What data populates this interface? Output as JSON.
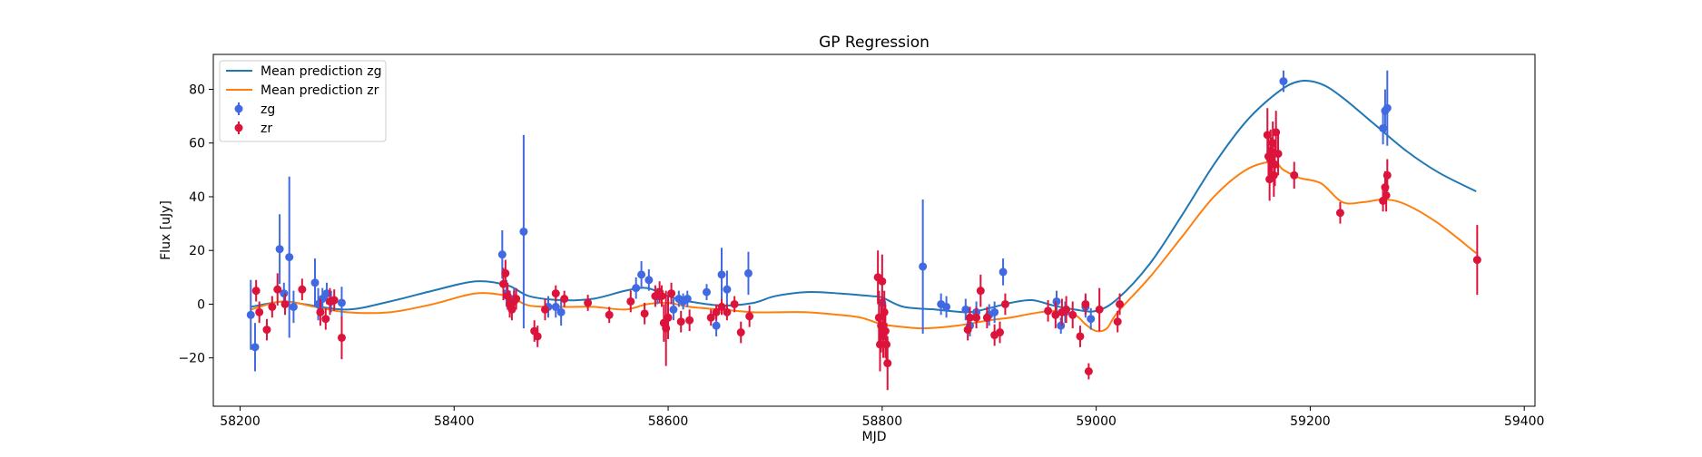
{
  "chart_data": {
    "type": "scatter",
    "title": "GP Regression",
    "xlabel": "MJD",
    "ylabel": "Flux [uJy]",
    "xlim": [
      58175,
      59410
    ],
    "ylim": [
      -38,
      93
    ],
    "x_ticks": [
      58200,
      58400,
      58600,
      58800,
      59000,
      59200,
      59400
    ],
    "y_ticks": [
      -20,
      0,
      20,
      40,
      60,
      80
    ],
    "grid": false,
    "legend_position": "top-left",
    "legend": [
      "Mean prediction zg",
      "Mean prediction zr",
      "zg",
      "zr"
    ],
    "colors": {
      "zg_line": "#1f77b4",
      "zr_line": "#ff7f0e",
      "zg_points": "#4169e1",
      "zr_points": "#dc143c"
    },
    "series": [
      {
        "name": "Mean prediction zg",
        "kind": "line",
        "x": [
          58210,
          58240,
          58260,
          58300,
          58340,
          58380,
          58420,
          58450,
          58470,
          58500,
          58530,
          58560,
          58580,
          58600,
          58620,
          58650,
          58680,
          58700,
          58730,
          58760,
          58790,
          58800,
          58820,
          58850,
          58880,
          58900,
          58920,
          58940,
          58960,
          58980,
          59000,
          59020,
          59050,
          59080,
          59110,
          59140,
          59170,
          59190,
          59210,
          59230,
          59260,
          59290,
          59320,
          59355
        ],
        "y": [
          -1,
          1,
          0,
          -2,
          1,
          5,
          8.5,
          7,
          3,
          1.5,
          2,
          5,
          6,
          3,
          1,
          -0.5,
          0.5,
          3,
          4.5,
          4,
          3,
          2.5,
          -1,
          -2,
          -3,
          -1.5,
          0.5,
          1.5,
          -0.5,
          -2,
          -2.5,
          2,
          15,
          33,
          52,
          68,
          79,
          83,
          82,
          77,
          67,
          57,
          49,
          42
        ]
      },
      {
        "name": "Mean prediction zr",
        "kind": "line",
        "x": [
          58210,
          58240,
          58270,
          58300,
          58340,
          58380,
          58420,
          58450,
          58470,
          58500,
          58530,
          58560,
          58580,
          58600,
          58620,
          58650,
          58680,
          58700,
          58730,
          58760,
          58780,
          58800,
          58820,
          58840,
          58870,
          58900,
          58920,
          58940,
          58960,
          58980,
          58990,
          59000,
          59010,
          59020,
          59050,
          59080,
          59110,
          59140,
          59165,
          59175,
          59190,
          59210,
          59230,
          59250,
          59270,
          59290,
          59320,
          59355
        ],
        "y": [
          -2,
          1,
          -1,
          -3,
          -3,
          0,
          4,
          3,
          -0.5,
          -1,
          -1,
          -2,
          0,
          0.5,
          -1,
          -2,
          -3,
          -3,
          -3,
          -4,
          -5,
          -7.5,
          -8.5,
          -9,
          -8,
          -6,
          -5,
          -3.5,
          -2.5,
          -4,
          -7.5,
          -10,
          -9,
          -3,
          10,
          25,
          40,
          50,
          53,
          50,
          47,
          45,
          38,
          38,
          39,
          37,
          30,
          19
        ]
      },
      {
        "name": "zg",
        "kind": "errorbar",
        "points": [
          {
            "x": 58210,
            "y": -4,
            "e": 13
          },
          {
            "x": 58214,
            "y": -16,
            "e": 9
          },
          {
            "x": 58237,
            "y": 20.5,
            "e": 13
          },
          {
            "x": 58241,
            "y": 4,
            "e": 4
          },
          {
            "x": 58246,
            "y": 17.5,
            "e": 30
          },
          {
            "x": 58250,
            "y": -1,
            "e": 6
          },
          {
            "x": 58270,
            "y": 8,
            "e": 9
          },
          {
            "x": 58273,
            "y": 0,
            "e": 6
          },
          {
            "x": 58277,
            "y": 2,
            "e": 4
          },
          {
            "x": 58281,
            "y": 4,
            "e": 4
          },
          {
            "x": 58285,
            "y": 1,
            "e": 4
          },
          {
            "x": 58295,
            "y": 0.5,
            "e": 6
          },
          {
            "x": 58445,
            "y": 18.5,
            "e": 9
          },
          {
            "x": 58449,
            "y": 4,
            "e": 5
          },
          {
            "x": 58452,
            "y": 1,
            "e": 4
          },
          {
            "x": 58456,
            "y": 2,
            "e": 4
          },
          {
            "x": 58465,
            "y": 27,
            "e": 36
          },
          {
            "x": 58488,
            "y": -1,
            "e": 4
          },
          {
            "x": 58495,
            "y": -1,
            "e": 4
          },
          {
            "x": 58500,
            "y": -3,
            "e": 5
          },
          {
            "x": 58570,
            "y": 6,
            "e": 4
          },
          {
            "x": 58575,
            "y": 11,
            "e": 5
          },
          {
            "x": 58582,
            "y": 9,
            "e": 4
          },
          {
            "x": 58590,
            "y": 3,
            "e": 3
          },
          {
            "x": 58605,
            "y": -2,
            "e": 4
          },
          {
            "x": 58610,
            "y": 2,
            "e": 3
          },
          {
            "x": 58614,
            "y": 1,
            "e": 3
          },
          {
            "x": 58618,
            "y": 2,
            "e": 3
          },
          {
            "x": 58636,
            "y": 4.5,
            "e": 3
          },
          {
            "x": 58645,
            "y": -8,
            "e": 4
          },
          {
            "x": 58650,
            "y": 11,
            "e": 10
          },
          {
            "x": 58655,
            "y": 5.5,
            "e": 7
          },
          {
            "x": 58675,
            "y": 11.5,
            "e": 8
          },
          {
            "x": 58800,
            "y": 0.5,
            "e": 5
          },
          {
            "x": 58838,
            "y": 14,
            "e": 25
          },
          {
            "x": 58855,
            "y": 0,
            "e": 4
          },
          {
            "x": 58860,
            "y": -1,
            "e": 4
          },
          {
            "x": 58878,
            "y": -2,
            "e": 4
          },
          {
            "x": 58882,
            "y": -8,
            "e": 4
          },
          {
            "x": 58888,
            "y": -3,
            "e": 4
          },
          {
            "x": 58900,
            "y": -4,
            "e": 4
          },
          {
            "x": 58905,
            "y": -3,
            "e": 4
          },
          {
            "x": 58913,
            "y": 12,
            "e": 5
          },
          {
            "x": 58963,
            "y": 1,
            "e": 4
          },
          {
            "x": 58967,
            "y": -8,
            "e": 3
          },
          {
            "x": 58971,
            "y": -3,
            "e": 4
          },
          {
            "x": 58990,
            "y": -1,
            "e": 4
          },
          {
            "x": 58995,
            "y": -5.5,
            "e": 4
          },
          {
            "x": 59175,
            "y": 83,
            "e": 4
          },
          {
            "x": 59268,
            "y": 65.5,
            "e": 6
          },
          {
            "x": 59270,
            "y": 72,
            "e": 8
          },
          {
            "x": 59272,
            "y": 73,
            "e": 14
          }
        ]
      },
      {
        "name": "zr",
        "kind": "errorbar",
        "points": [
          {
            "x": 58215,
            "y": 5,
            "e": 4
          },
          {
            "x": 58218,
            "y": -3,
            "e": 4
          },
          {
            "x": 58225,
            "y": -9.5,
            "e": 4
          },
          {
            "x": 58230,
            "y": -1,
            "e": 4
          },
          {
            "x": 58235,
            "y": 5.5,
            "e": 6
          },
          {
            "x": 58242,
            "y": 0,
            "e": 4
          },
          {
            "x": 58258,
            "y": 5.5,
            "e": 4
          },
          {
            "x": 58275,
            "y": -3,
            "e": 5
          },
          {
            "x": 58280,
            "y": -5.5,
            "e": 4
          },
          {
            "x": 58284,
            "y": 1,
            "e": 5
          },
          {
            "x": 58288,
            "y": 1.5,
            "e": 4
          },
          {
            "x": 58295,
            "y": -12.5,
            "e": 8
          },
          {
            "x": 58446,
            "y": 7.5,
            "e": 6
          },
          {
            "x": 58448,
            "y": 11.5,
            "e": 5
          },
          {
            "x": 58450,
            "y": 3,
            "e": 5
          },
          {
            "x": 58452,
            "y": 0,
            "e": 5
          },
          {
            "x": 58454,
            "y": -2,
            "e": 4
          },
          {
            "x": 58456,
            "y": 1,
            "e": 4
          },
          {
            "x": 58458,
            "y": 2,
            "e": 4
          },
          {
            "x": 58475,
            "y": -10,
            "e": 4
          },
          {
            "x": 58478,
            "y": -12,
            "e": 4
          },
          {
            "x": 58485,
            "y": -2,
            "e": 4
          },
          {
            "x": 58495,
            "y": 4,
            "e": 3
          },
          {
            "x": 58503,
            "y": 2,
            "e": 3
          },
          {
            "x": 58525,
            "y": 0.5,
            "e": 3
          },
          {
            "x": 58545,
            "y": -4,
            "e": 3
          },
          {
            "x": 58565,
            "y": 1,
            "e": 4
          },
          {
            "x": 58578,
            "y": -3.5,
            "e": 4
          },
          {
            "x": 58588,
            "y": 3,
            "e": 4
          },
          {
            "x": 58592,
            "y": 4.5,
            "e": 4
          },
          {
            "x": 58594,
            "y": 3,
            "e": 4
          },
          {
            "x": 58596,
            "y": -7,
            "e": 7
          },
          {
            "x": 58598,
            "y": -9,
            "e": 14
          },
          {
            "x": 58600,
            "y": -5,
            "e": 8
          },
          {
            "x": 58603,
            "y": 4,
            "e": 4
          },
          {
            "x": 58612,
            "y": -6.5,
            "e": 4
          },
          {
            "x": 58620,
            "y": -6,
            "e": 4
          },
          {
            "x": 58640,
            "y": -5,
            "e": 3
          },
          {
            "x": 58645,
            "y": -3,
            "e": 3
          },
          {
            "x": 58650,
            "y": -1,
            "e": 3
          },
          {
            "x": 58655,
            "y": -3,
            "e": 3
          },
          {
            "x": 58662,
            "y": 0,
            "e": 3
          },
          {
            "x": 58668,
            "y": -10.5,
            "e": 4
          },
          {
            "x": 58676,
            "y": -4.5,
            "e": 4
          },
          {
            "x": 58796,
            "y": 10,
            "e": 10
          },
          {
            "x": 58797,
            "y": -5,
            "e": 10
          },
          {
            "x": 58798,
            "y": -15,
            "e": 10
          },
          {
            "x": 58799,
            "y": -8,
            "e": 10
          },
          {
            "x": 58800,
            "y": 8.5,
            "e": 10
          },
          {
            "x": 58801,
            "y": -12,
            "e": 8
          },
          {
            "x": 58802,
            "y": -3,
            "e": 8
          },
          {
            "x": 58803,
            "y": -10,
            "e": 10
          },
          {
            "x": 58804,
            "y": -15,
            "e": 8
          },
          {
            "x": 58805,
            "y": -22,
            "e": 10
          },
          {
            "x": 58880,
            "y": -9.5,
            "e": 4
          },
          {
            "x": 58882,
            "y": -5,
            "e": 4
          },
          {
            "x": 58888,
            "y": -5,
            "e": 4
          },
          {
            "x": 58892,
            "y": 5,
            "e": 6
          },
          {
            "x": 58898,
            "y": -5,
            "e": 4
          },
          {
            "x": 58905,
            "y": -11.5,
            "e": 4
          },
          {
            "x": 58910,
            "y": -10.5,
            "e": 4
          },
          {
            "x": 58915,
            "y": 0,
            "e": 4
          },
          {
            "x": 58955,
            "y": -2.5,
            "e": 4
          },
          {
            "x": 58962,
            "y": -4,
            "e": 5
          },
          {
            "x": 58968,
            "y": -3,
            "e": 5
          },
          {
            "x": 58972,
            "y": -2,
            "e": 5
          },
          {
            "x": 58978,
            "y": -4,
            "e": 5
          },
          {
            "x": 58985,
            "y": -12,
            "e": 4
          },
          {
            "x": 58990,
            "y": 0,
            "e": 4
          },
          {
            "x": 58993,
            "y": -25,
            "e": 3
          },
          {
            "x": 59003,
            "y": -2,
            "e": 8
          },
          {
            "x": 59020,
            "y": -6.5,
            "e": 4
          },
          {
            "x": 59022,
            "y": 0,
            "e": 4
          },
          {
            "x": 59160,
            "y": 63,
            "e": 10
          },
          {
            "x": 59161,
            "y": 55,
            "e": 8
          },
          {
            "x": 59162,
            "y": 46.5,
            "e": 8
          },
          {
            "x": 59163,
            "y": 57,
            "e": 8
          },
          {
            "x": 59164,
            "y": 54,
            "e": 8
          },
          {
            "x": 59165,
            "y": 60,
            "e": 8
          },
          {
            "x": 59166,
            "y": 48,
            "e": 8
          },
          {
            "x": 59167,
            "y": 52,
            "e": 8
          },
          {
            "x": 59168,
            "y": 64,
            "e": 8
          },
          {
            "x": 59170,
            "y": 56,
            "e": 8
          },
          {
            "x": 59185,
            "y": 48,
            "e": 5
          },
          {
            "x": 59228,
            "y": 34,
            "e": 4
          },
          {
            "x": 59268,
            "y": 38.5,
            "e": 4
          },
          {
            "x": 59270,
            "y": 43.5,
            "e": 6
          },
          {
            "x": 59271,
            "y": 40.5,
            "e": 6
          },
          {
            "x": 59272,
            "y": 48,
            "e": 6
          },
          {
            "x": 59356,
            "y": 16.5,
            "e": 13
          }
        ]
      }
    ]
  }
}
